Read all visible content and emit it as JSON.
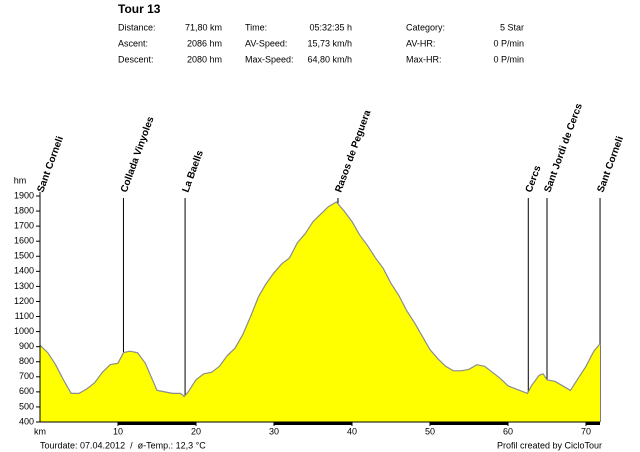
{
  "header": {
    "title": "Tour 13",
    "stats": [
      [
        {
          "label": "Distance:",
          "value": "71,80 km"
        },
        {
          "label": "Time:",
          "value": "05:32:35 h"
        },
        {
          "label": "Category:",
          "value": "5 Star"
        }
      ],
      [
        {
          "label": "Ascent:",
          "value": "2086 hm"
        },
        {
          "label": "AV-Speed:",
          "value": "15,73 km/h"
        },
        {
          "label": "AV-HR:",
          "value": "0 P/min"
        }
      ],
      [
        {
          "label": "Descent:",
          "value": "2080 hm"
        },
        {
          "label": "Max-Speed:",
          "value": "64,80 km/h"
        },
        {
          "label": "Max-HR:",
          "value": "0 P/min"
        }
      ]
    ]
  },
  "chart_data": {
    "type": "area",
    "xlabel": "km",
    "ylabel": "hm",
    "color": "#ffff00",
    "line_color": "#8c8c8c",
    "x": [
      0,
      1,
      2,
      3,
      4,
      5,
      6,
      7,
      8,
      9,
      10,
      10.7,
      11.5,
      12.5,
      13.5,
      14.5,
      15,
      16,
      17,
      18,
      18.5,
      19,
      20,
      21,
      22,
      23,
      24,
      25,
      26,
      27,
      28,
      29,
      30,
      31,
      32,
      33,
      34,
      35,
      36,
      37,
      38,
      39,
      40,
      41,
      42,
      43,
      44,
      45,
      46,
      47,
      48,
      49,
      50,
      51,
      52,
      53,
      54,
      55,
      56,
      57,
      58,
      59,
      60,
      61,
      62.5,
      63,
      64,
      64.5,
      65,
      66,
      67,
      68,
      69,
      70,
      71,
      71.8
    ],
    "values": [
      910,
      860,
      780,
      680,
      590,
      590,
      620,
      660,
      730,
      780,
      790,
      860,
      870,
      860,
      790,
      670,
      610,
      600,
      590,
      590,
      570,
      600,
      680,
      720,
      730,
      770,
      840,
      890,
      980,
      1100,
      1230,
      1320,
      1390,
      1450,
      1490,
      1590,
      1650,
      1730,
      1780,
      1830,
      1860,
      1800,
      1730,
      1640,
      1570,
      1490,
      1420,
      1320,
      1240,
      1140,
      1060,
      970,
      880,
      820,
      770,
      740,
      740,
      750,
      780,
      770,
      730,
      690,
      640,
      620,
      590,
      640,
      710,
      720,
      680,
      670,
      640,
      610,
      690,
      770,
      870,
      920
    ],
    "xlim": [
      0,
      71.8
    ],
    "ylim": [
      400,
      1900
    ],
    "xticks": [
      10,
      20,
      30,
      40,
      50,
      60,
      70
    ],
    "yticks": [
      400,
      500,
      600,
      700,
      800,
      900,
      1000,
      1100,
      1200,
      1300,
      1400,
      1500,
      1600,
      1700,
      1800,
      1900
    ],
    "waypoints": [
      {
        "x": 0,
        "label": "Sant Corneli"
      },
      {
        "x": 10.7,
        "label": "Collada Vinyoles"
      },
      {
        "x": 18.6,
        "label": "La Baells"
      },
      {
        "x": 38.2,
        "label": "Rasos de Peguera"
      },
      {
        "x": 62.6,
        "label": "Cercs"
      },
      {
        "x": 65,
        "label": "Sant Jordi de Cercs"
      },
      {
        "x": 71.8,
        "label": "Sant Corneli"
      }
    ]
  },
  "footer": {
    "left": "Tourdate: 07.04.2012  /  ø-Temp.: 12,3 °C",
    "right": "Profil created by CicloTour"
  }
}
